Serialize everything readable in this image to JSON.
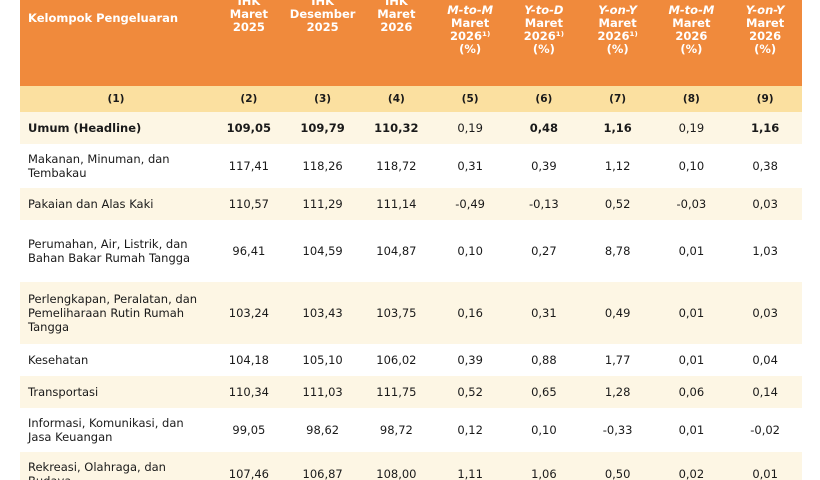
{
  "header": {
    "col1": "Kelompok Pengeluaran",
    "cols": [
      {
        "lines": [
          "IHK",
          "Maret",
          "2025"
        ]
      },
      {
        "lines": [
          "IHK",
          "Desember",
          "2025"
        ]
      },
      {
        "lines": [
          "IHK",
          "Maret",
          "2026"
        ]
      },
      {
        "lines": [
          "M-to-M",
          "Maret",
          "2026¹⁾",
          "(%)"
        ]
      },
      {
        "lines": [
          "Y-to-D",
          "Maret",
          "2026¹⁾",
          "(%)"
        ]
      },
      {
        "lines": [
          "Y-on-Y",
          "Maret",
          "2026¹⁾",
          "(%)"
        ]
      },
      {
        "lines": [
          "M-to-M",
          "Maret",
          "2026",
          "(%)"
        ]
      },
      {
        "lines": [
          "Y-on-Y",
          "Maret",
          "2026",
          "(%)"
        ]
      }
    ]
  },
  "col_numbers": [
    "(1)",
    "(2)",
    "(3)",
    "(4)",
    "(5)",
    "(6)",
    "(7)",
    "(8)",
    "(9)"
  ],
  "rows": [
    {
      "label": "Umum (Headline)",
      "values": [
        "109,05",
        "109,79",
        "110,32",
        "0,19",
        "0,48",
        "1,16",
        "0,19",
        "1,16"
      ],
      "bold": true
    },
    {
      "label": "Makanan, Minuman, dan Tembakau",
      "values": [
        "117,41",
        "118,26",
        "118,72",
        "0,31",
        "0,39",
        "1,12",
        "0,10",
        "0,38"
      ]
    },
    {
      "label": "Pakaian dan Alas Kaki",
      "values": [
        "110,57",
        "111,29",
        "111,14",
        "-0,49",
        "-0,13",
        "0,52",
        "-0,03",
        "0,03"
      ]
    },
    {
      "label": "Perumahan, Air, Listrik, dan Bahan Bakar Rumah Tangga",
      "values": [
        "96,41",
        "104,59",
        "104,87",
        "0,10",
        "0,27",
        "8,78",
        "0,01",
        "1,03"
      ]
    },
    {
      "label": "Perlengkapan, Peralatan, dan Pemeliharaan Rutin Rumah Tangga",
      "values": [
        "103,24",
        "103,43",
        "103,75",
        "0,16",
        "0,31",
        "0,49",
        "0,01",
        "0,03"
      ]
    },
    {
      "label": "Kesehatan",
      "values": [
        "104,18",
        "105,10",
        "106,02",
        "0,39",
        "0,88",
        "1,77",
        "0,01",
        "0,04"
      ]
    },
    {
      "label": "Transportasi",
      "values": [
        "110,34",
        "111,03",
        "111,75",
        "0,52",
        "0,65",
        "1,28",
        "0,06",
        "0,14"
      ]
    },
    {
      "label": "Informasi, Komunikasi, dan Jasa Keuangan",
      "values": [
        "99,05",
        "98,62",
        "98,72",
        "0,12",
        "0,10",
        "-0,33",
        "0,01",
        "-0,02"
      ]
    },
    {
      "label": "Rekreasi, Olahraga, dan Budaya",
      "values": [
        "107,46",
        "106,87",
        "108,00",
        "1,11",
        "1,06",
        "0,50",
        "0,02",
        "0,01"
      ]
    }
  ]
}
